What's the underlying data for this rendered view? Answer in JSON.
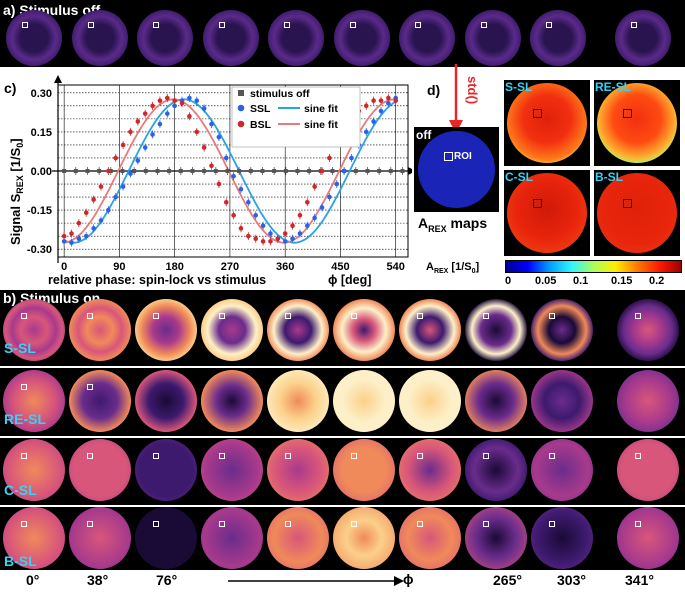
{
  "panel_a": {
    "title": "a) Stimulus off"
  },
  "panel_b": {
    "title": "b) Stimulus on",
    "rows": [
      "S-SL",
      "RE-SL",
      "C-SL",
      "B-SL"
    ],
    "phase_labels": [
      "0°",
      "38°",
      "76°",
      "265°",
      "303°",
      "341°"
    ],
    "arrow_label": "ϕ"
  },
  "panel_d": {
    "label": "d)",
    "std_label": "std()",
    "off_label": "off",
    "roi_label": "ROI",
    "maps_title_main": "A",
    "maps_title_sub": "REX",
    "maps_title_rest": " maps",
    "map_labels": [
      "S-SL",
      "RE-SL",
      "C-SL",
      "B-SL"
    ],
    "colorbar_title_main": "A",
    "colorbar_title_sub": "REX",
    "colorbar_title_rest": " [1/S",
    "colorbar_title_sub2": "0",
    "colorbar_title_end": "]",
    "colorbar_ticks": [
      "0",
      "0.05",
      "0.1",
      "0.15",
      "0.2"
    ],
    "colors": {
      "cyan_label": "#35d4f4",
      "off_map": "#1a25b8",
      "arrow": "#e8262a"
    }
  },
  "chart_data": {
    "type": "scatter",
    "panel_label": "c)",
    "ylabel_main": "Signal S",
    "ylabel_sub": "REX",
    "ylabel_unit": " [1/S",
    "ylabel_unit_sub": "0",
    "ylabel_end": "]",
    "xlabel": "relative phase: spin-lock vs stimulus",
    "xlabel_right": "ϕ [deg]",
    "xlim": [
      -10,
      560
    ],
    "ylim": [
      -0.33,
      0.33
    ],
    "xticks": [
      "0",
      "90",
      "180",
      "270",
      "360",
      "450",
      "540"
    ],
    "yticks": [
      "0.30",
      "0.15",
      "0.00",
      "-0.15",
      "-0.30"
    ],
    "legend": [
      {
        "name": "stimulus off",
        "color": "#555555",
        "marker": "square"
      },
      {
        "name": "SSL",
        "color": "#2a62e8",
        "marker": "circle"
      },
      {
        "name": "BSL",
        "color": "#d0272a",
        "marker": "circle"
      },
      {
        "name": "sine fit",
        "color": "#2aa2e8",
        "marker": "line"
      },
      {
        "name": "sine fit",
        "color": "#e87a7a",
        "marker": "line"
      }
    ],
    "series": [
      {
        "name": "stimulus off",
        "color": "#555555",
        "x": [
          0,
          19,
          38,
          57,
          76,
          95,
          114,
          133,
          152,
          171,
          190,
          209,
          228,
          247,
          266,
          285,
          304,
          323,
          342,
          361,
          380,
          399,
          418,
          437,
          456,
          475,
          494,
          513,
          532,
          551
        ],
        "y": [
          0.0,
          0.0,
          0.0,
          0.0,
          0.0,
          0.0,
          0.0,
          0.0,
          0.0,
          0.0,
          0.0,
          0.0,
          0.0,
          0.0,
          0.0,
          0.0,
          0.0,
          0.0,
          0.0,
          0.0,
          0.0,
          0.0,
          0.0,
          0.0,
          0.0,
          0.0,
          0.0,
          0.0,
          0.0,
          0.0
        ]
      },
      {
        "name": "SSL",
        "color": "#2a62e8",
        "x": [
          0,
          12,
          24,
          36,
          48,
          60,
          72,
          84,
          96,
          108,
          120,
          132,
          144,
          156,
          168,
          180,
          192,
          204,
          216,
          228,
          240,
          252,
          264,
          276,
          288,
          300,
          312,
          324,
          336,
          348,
          360,
          372,
          384,
          396,
          408,
          420,
          432,
          444,
          456,
          468,
          480,
          492,
          504,
          516,
          528,
          540
        ],
        "y": [
          -0.27,
          -0.275,
          -0.26,
          -0.25,
          -0.22,
          -0.19,
          -0.15,
          -0.1,
          -0.06,
          -0.01,
          0.04,
          0.09,
          0.14,
          0.18,
          0.22,
          0.25,
          0.27,
          0.28,
          0.27,
          0.24,
          0.18,
          0.13,
          0.05,
          -0.02,
          -0.07,
          -0.12,
          -0.17,
          -0.21,
          -0.24,
          -0.26,
          -0.27,
          -0.26,
          -0.24,
          -0.21,
          -0.18,
          -0.14,
          -0.1,
          -0.05,
          0.0,
          0.05,
          0.1,
          0.15,
          0.19,
          0.23,
          0.26,
          0.28
        ]
      },
      {
        "name": "BSL",
        "color": "#d0272a",
        "x": [
          0,
          12,
          24,
          36,
          48,
          60,
          72,
          84,
          96,
          108,
          120,
          132,
          144,
          156,
          168,
          180,
          192,
          204,
          216,
          228,
          240,
          252,
          264,
          276,
          288,
          300,
          312,
          324,
          336,
          348,
          360,
          372,
          384,
          396,
          408,
          420,
          432,
          444,
          456,
          468,
          480,
          492,
          504,
          516,
          528,
          540
        ],
        "y": [
          -0.25,
          -0.24,
          -0.2,
          -0.16,
          -0.11,
          -0.06,
          0.0,
          0.05,
          0.1,
          0.15,
          0.19,
          0.22,
          0.25,
          0.27,
          0.28,
          0.27,
          0.26,
          0.21,
          0.15,
          0.09,
          0.02,
          -0.05,
          -0.12,
          -0.17,
          -0.22,
          -0.25,
          -0.26,
          -0.27,
          -0.27,
          -0.26,
          -0.24,
          -0.21,
          -0.17,
          -0.12,
          -0.06,
          0.0,
          0.05,
          0.11,
          0.16,
          0.2,
          0.23,
          0.25,
          0.27,
          0.27,
          0.28,
          0.27
        ]
      }
    ]
  }
}
